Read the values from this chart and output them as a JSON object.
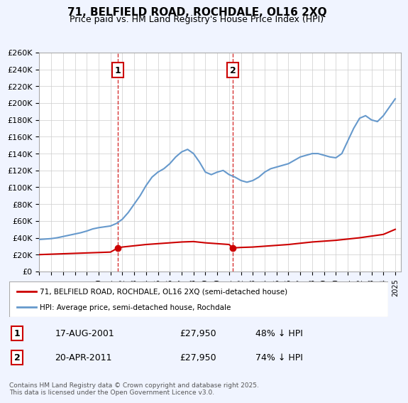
{
  "title": "71, BELFIELD ROAD, ROCHDALE, OL16 2XQ",
  "subtitle": "Price paid vs. HM Land Registry's House Price Index (HPI)",
  "xlabel": "",
  "ylabel": "",
  "ylim": [
    0,
    260000
  ],
  "yticks": [
    0,
    20000,
    40000,
    60000,
    80000,
    100000,
    120000,
    140000,
    160000,
    180000,
    200000,
    220000,
    240000,
    260000
  ],
  "ytick_labels": [
    "£0",
    "£20K",
    "£40K",
    "£60K",
    "£80K",
    "£100K",
    "£120K",
    "£140K",
    "£160K",
    "£180K",
    "£200K",
    "£220K",
    "£240K",
    "£260K"
  ],
  "xlim_start": 1995.0,
  "xlim_end": 2025.5,
  "background_color": "#f0f4ff",
  "plot_bg_color": "#ffffff",
  "grid_color": "#cccccc",
  "red_line_color": "#cc0000",
  "blue_line_color": "#6699cc",
  "marker1_x": 2001.63,
  "marker1_y": 27950,
  "marker2_x": 2011.3,
  "marker2_y": 27950,
  "legend_label_red": "71, BELFIELD ROAD, ROCHDALE, OL16 2XQ (semi-detached house)",
  "legend_label_blue": "HPI: Average price, semi-detached house, Rochdale",
  "annot1_label": "1",
  "annot1_date": "17-AUG-2001",
  "annot1_price": "£27,950",
  "annot1_hpi": "48% ↓ HPI",
  "annot2_label": "2",
  "annot2_date": "20-APR-2011",
  "annot2_price": "£27,950",
  "annot2_hpi": "74% ↓ HPI",
  "footer": "Contains HM Land Registry data © Crown copyright and database right 2025.\nThis data is licensed under the Open Government Licence v3.0.",
  "hpi_years": [
    1995,
    1995.5,
    1996,
    1996.5,
    1997,
    1997.5,
    1998,
    1998.5,
    1999,
    1999.5,
    2000,
    2000.5,
    2001,
    2001.5,
    2002,
    2002.5,
    2003,
    2003.5,
    2004,
    2004.5,
    2005,
    2005.5,
    2006,
    2006.5,
    2007,
    2007.5,
    2008,
    2008.5,
    2009,
    2009.5,
    2010,
    2010.5,
    2011,
    2011.5,
    2012,
    2012.5,
    2013,
    2013.5,
    2014,
    2014.5,
    2015,
    2015.5,
    2016,
    2016.5,
    2017,
    2017.5,
    2018,
    2018.5,
    2019,
    2019.5,
    2020,
    2020.5,
    2021,
    2021.5,
    2022,
    2022.5,
    2023,
    2023.5,
    2024,
    2024.5,
    2025
  ],
  "hpi_values": [
    38000,
    38500,
    39000,
    40000,
    41500,
    43000,
    44500,
    46000,
    48000,
    50500,
    52000,
    53000,
    54000,
    57000,
    62000,
    70000,
    80000,
    90000,
    102000,
    112000,
    118000,
    122000,
    128000,
    136000,
    142000,
    145000,
    140000,
    130000,
    118000,
    115000,
    118000,
    120000,
    115000,
    112000,
    108000,
    106000,
    108000,
    112000,
    118000,
    122000,
    124000,
    126000,
    128000,
    132000,
    136000,
    138000,
    140000,
    140000,
    138000,
    136000,
    135000,
    140000,
    155000,
    170000,
    182000,
    185000,
    180000,
    178000,
    185000,
    195000,
    205000
  ],
  "red_years": [
    1995,
    1996,
    1997,
    1998,
    1999,
    2000,
    2001,
    2001.63,
    2002,
    2003,
    2004,
    2005,
    2006,
    2007,
    2008,
    2009,
    2010,
    2011,
    2011.3,
    2012,
    2013,
    2014,
    2015,
    2016,
    2017,
    2018,
    2019,
    2020,
    2021,
    2022,
    2023,
    2024,
    2025
  ],
  "red_values": [
    20000,
    20500,
    21000,
    21500,
    22000,
    22500,
    23000,
    27950,
    29000,
    30500,
    32000,
    33000,
    34000,
    35000,
    35500,
    34000,
    33000,
    32000,
    27950,
    28500,
    29000,
    30000,
    31000,
    32000,
    33500,
    35000,
    36000,
    37000,
    38500,
    40000,
    42000,
    44000,
    50000
  ]
}
